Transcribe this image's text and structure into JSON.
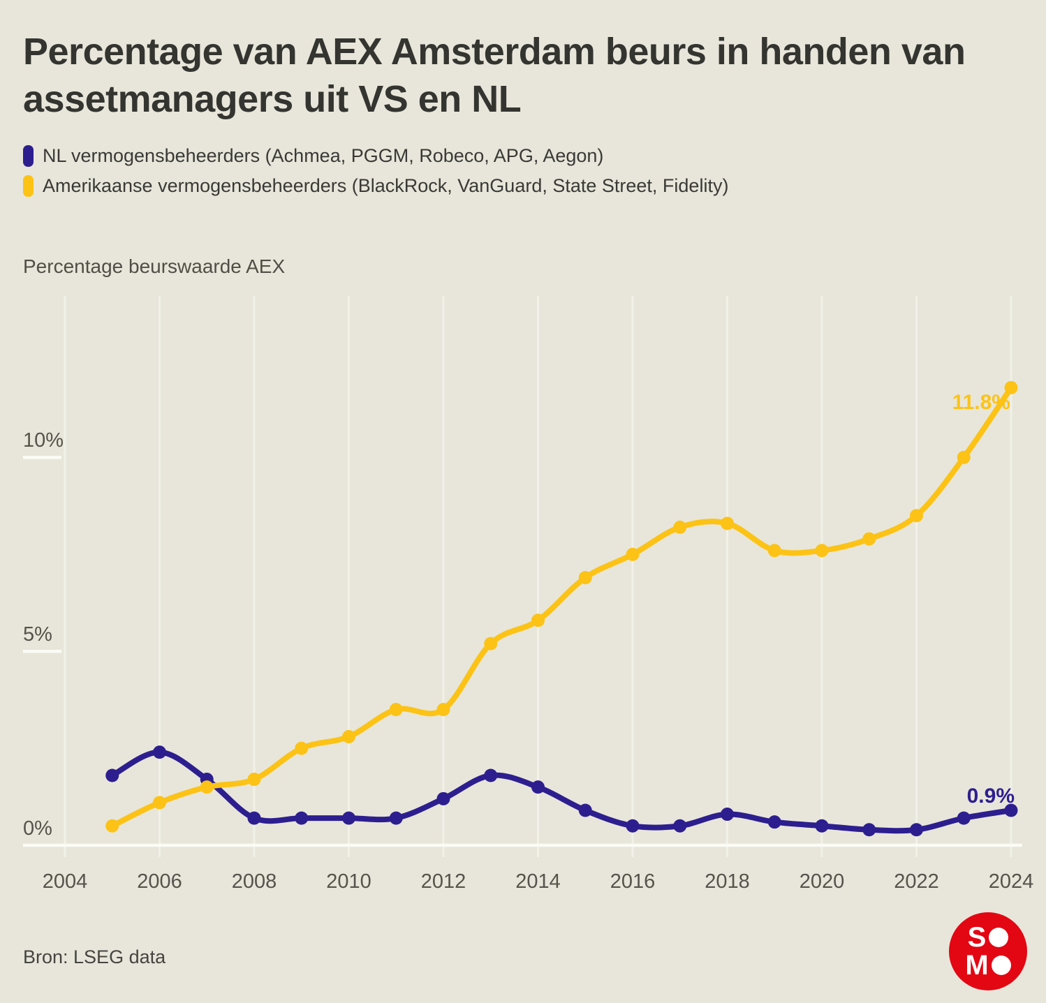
{
  "title": "Percentage van AEX Amsterdam beurs in handen van\nassetmanagers uit VS en NL",
  "axis_title": "Percentage beurswaarde AEX",
  "source": "Bron: LSEG data",
  "theme": {
    "background": "#e8e6da",
    "title_color": "#343430",
    "text_color": "#3a3936",
    "muted_color": "#55534b",
    "gridline_color": "#f4f3ea",
    "axis_line_color": "#fcfbf5"
  },
  "legend": [
    {
      "id": "nl",
      "label": "NL vermogensbeheerders (Achmea, PGGM, Robeco, APG, Aegon)"
    },
    {
      "id": "us",
      "label": "Amerikaanse vermogensbeheerders (BlackRock, VanGuard, State Street, Fidelity)"
    }
  ],
  "logo": {
    "alt": "SOMO",
    "color": "#e30613",
    "rows": [
      {
        "letter": "S"
      },
      {
        "letter": "M"
      }
    ]
  },
  "chart_data": {
    "type": "line",
    "title": "Percentage van AEX Amsterdam beurs in handen van assetmanagers uit VS en NL",
    "ylabel": "Percentage beurswaarde AEX",
    "x": [
      2005,
      2006,
      2007,
      2008,
      2009,
      2010,
      2011,
      2012,
      2013,
      2014,
      2015,
      2016,
      2017,
      2018,
      2019,
      2020,
      2021,
      2022,
      2023,
      2024
    ],
    "series": [
      {
        "id": "nl",
        "name": "NL vermogensbeheerders (Achmea, PGGM, Robeco, APG, Aegon)",
        "color": "#2d1e8f",
        "end_label": "0.9%",
        "values": [
          1.8,
          2.4,
          1.7,
          0.7,
          0.7,
          0.7,
          0.7,
          1.2,
          1.8,
          1.5,
          0.9,
          0.5,
          0.5,
          0.8,
          0.6,
          0.5,
          0.4,
          0.4,
          0.7,
          0.9
        ]
      },
      {
        "id": "us",
        "name": "Amerikaanse vermogensbeheerders (BlackRock, VanGuard, State Street, Fidelity)",
        "color": "#fcc316",
        "end_label": "11.8%",
        "values": [
          0.5,
          1.1,
          1.5,
          1.7,
          2.5,
          2.8,
          3.5,
          3.5,
          5.2,
          5.8,
          6.9,
          7.5,
          8.2,
          8.3,
          7.6,
          7.6,
          7.9,
          8.5,
          10.0,
          11.8
        ]
      }
    ],
    "x_ticks": [
      2004,
      2006,
      2008,
      2010,
      2012,
      2014,
      2016,
      2018,
      2020,
      2022,
      2024
    ],
    "y_ticks": [
      {
        "label": "0%",
        "value": 0
      },
      {
        "label": "5%",
        "value": 5
      },
      {
        "label": "10%",
        "value": 10
      }
    ],
    "xlim": [
      2004,
      2024.3
    ],
    "ylim": [
      0,
      14.1
    ],
    "grid": "vertical",
    "legend_position": "top-left"
  }
}
